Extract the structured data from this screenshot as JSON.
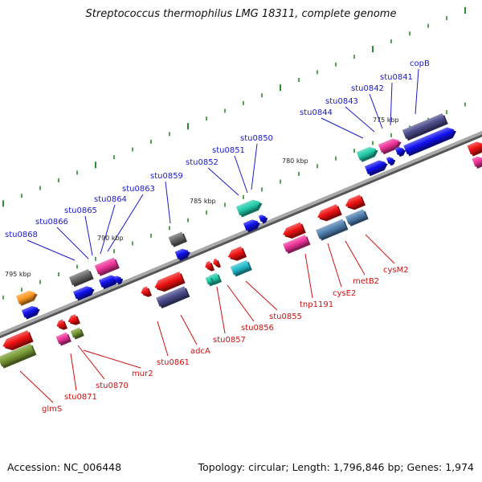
{
  "title": "Streptococcus thermophilus LMG 18311, complete genome",
  "accession": "Accession: NC_006448",
  "summary": "Topology: circular; Length: 1,796,846 bp; Genes: 1,974",
  "scale_labels": [
    "775 kbp",
    "780 kbp",
    "785 kbp",
    "790 kbp",
    "795 kbp"
  ],
  "top_genes": [
    "copB",
    "stu0841",
    "stu0842",
    "stu0843",
    "stu0844",
    "stu0850",
    "stu0851",
    "stu0852",
    "stu0859",
    "stu0863",
    "stu0864",
    "stu0865",
    "stu0866",
    "stu0868"
  ],
  "bottom_genes": [
    "cysM2",
    "metB2",
    "cysE2",
    "tnp1191",
    "stu0855",
    "stu0856",
    "stu0857",
    "adcA",
    "stu0861",
    "mur2",
    "stu0870",
    "stu0871",
    "glmS"
  ],
  "colors": {
    "backbone": "#8a8a8a",
    "tick": "#2e8b2e",
    "top_label": "#1a1acc",
    "bottom_label": "#cc1111",
    "red": "#ee1111",
    "blue": "#1010ee",
    "navy": "#4a4a8a",
    "magenta": "#ee3399",
    "teal": "#22ccaa",
    "cyan": "#22bbcc",
    "grey": "#666666",
    "orange": "#ff9922",
    "olive": "#779933",
    "steel": "#4f7fb0"
  }
}
